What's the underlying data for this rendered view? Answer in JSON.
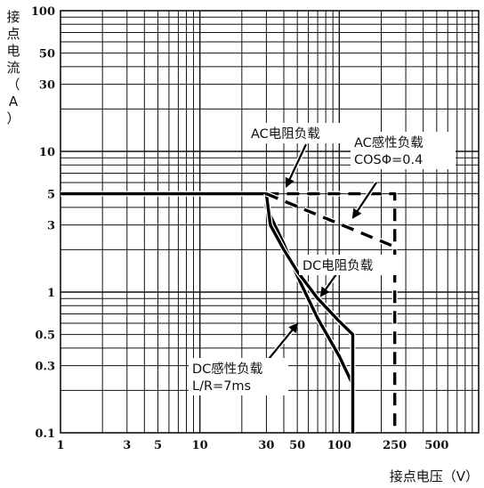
{
  "chart_data": {
    "type": "line",
    "xscale": "log",
    "yscale": "log",
    "xlim": [
      1,
      1000
    ],
    "ylim": [
      0.1,
      100
    ],
    "grid": true,
    "xlabel": "接点电压（V）",
    "ylabel_chars": [
      "接",
      "点",
      "电",
      "流",
      "（",
      "A",
      "）"
    ],
    "x_ticks": [
      {
        "value": 1,
        "label": "1"
      },
      {
        "value": 3,
        "label": "3"
      },
      {
        "value": 5,
        "label": "5"
      },
      {
        "value": 10,
        "label": "10"
      },
      {
        "value": 30,
        "label": "30"
      },
      {
        "value": 50,
        "label": "50"
      },
      {
        "value": 100,
        "label": "100"
      },
      {
        "value": 250,
        "label": "250"
      },
      {
        "value": 500,
        "label": "500"
      }
    ],
    "y_ticks": [
      {
        "value": 100,
        "label": "100"
      },
      {
        "value": 50,
        "label": "50"
      },
      {
        "value": 30,
        "label": "30"
      },
      {
        "value": 10,
        "label": "10"
      },
      {
        "value": 5,
        "label": "5"
      },
      {
        "value": 3,
        "label": "3"
      },
      {
        "value": 1,
        "label": "1"
      },
      {
        "value": 0.5,
        "label": "0.5"
      },
      {
        "value": 0.3,
        "label": "0.3"
      },
      {
        "value": 0.1,
        "label": "0.1"
      }
    ],
    "series": [
      {
        "key": "dc_inductive",
        "style": "solid",
        "x": [
          1,
          30,
          30,
          40,
          50,
          70,
          100,
          125,
          125
        ],
        "y": [
          5,
          5,
          4,
          2.2,
          1.3,
          0.65,
          0.35,
          0.22,
          0.1
        ]
      },
      {
        "key": "dc_resistive",
        "style": "solid",
        "x": [
          30,
          32,
          40,
          50,
          70,
          100,
          125,
          125
        ],
        "y": [
          5,
          3,
          2.0,
          1.4,
          0.9,
          0.62,
          0.5,
          0.1
        ]
      },
      {
        "key": "ac_resistive",
        "style": "dashed",
        "x": [
          30,
          250,
          250
        ],
        "y": [
          5,
          5,
          0.1
        ]
      },
      {
        "key": "ac_inductive",
        "style": "dashed",
        "x": [
          30,
          250
        ],
        "y": [
          5,
          2.1
        ]
      }
    ],
    "annotations": [
      {
        "key": "ac_resistive",
        "lines": [
          "AC电阻负载"
        ]
      },
      {
        "key": "ac_inductive",
        "lines": [
          "AC感性负载",
          "COSΦ=0.4"
        ]
      },
      {
        "key": "dc_resistive",
        "lines": [
          "DC电阻负载"
        ]
      },
      {
        "key": "dc_inductive",
        "lines": [
          "DC感性负载",
          "L/R=7ms"
        ]
      }
    ]
  }
}
